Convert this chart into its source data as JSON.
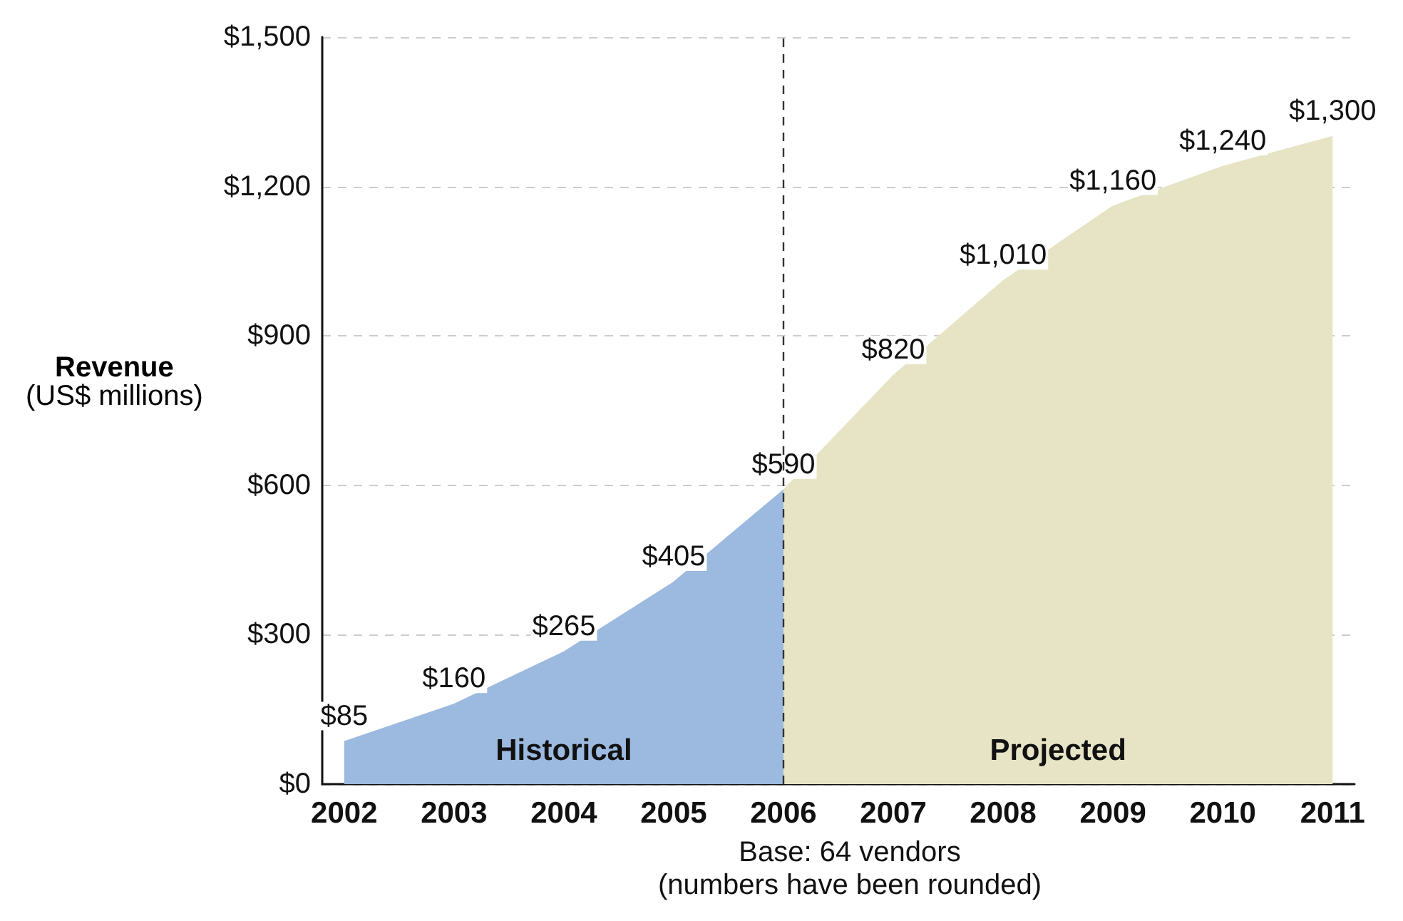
{
  "chart_data": {
    "type": "area",
    "ylabel": "Revenue\n(US$ millions)",
    "xlim": [
      2001.8,
      2011.2
    ],
    "xticks": [
      2002,
      2003,
      2004,
      2005,
      2006,
      2007,
      2008,
      2009,
      2010,
      2011
    ],
    "ylim": [
      0,
      1500
    ],
    "yticks": [
      {
        "value": 0,
        "label": "$0"
      },
      {
        "value": 300,
        "label": "$300"
      },
      {
        "value": 600,
        "label": "$600"
      },
      {
        "value": 900,
        "label": "$900"
      },
      {
        "value": 1200,
        "label": "$1,200"
      },
      {
        "value": 1500,
        "label": "$1,500"
      }
    ],
    "grid": "y",
    "series": [
      {
        "name": "Historical",
        "color": "#9cb9df",
        "x": [
          2002,
          2003,
          2004,
          2005,
          2006
        ],
        "values": [
          85,
          160,
          265,
          405,
          590
        ],
        "value_labels": [
          "$85",
          "$160",
          "$265",
          "$405",
          "$590"
        ]
      },
      {
        "name": "Projected",
        "color": "#e7e4c5",
        "x": [
          2006,
          2007,
          2008,
          2009,
          2010,
          2011
        ],
        "values": [
          590,
          820,
          1010,
          1160,
          1240,
          1300
        ],
        "value_labels": [
          null,
          "$820",
          "$1,010",
          "$1,160",
          "$1,240",
          "$1,300"
        ]
      }
    ],
    "ref_lines": [
      {
        "axis": "x",
        "value": 2006,
        "color": "#333333",
        "line_style": "dashed"
      }
    ],
    "annotations": [
      "Base: 64 vendors",
      "(numbers have been rounded)"
    ]
  }
}
